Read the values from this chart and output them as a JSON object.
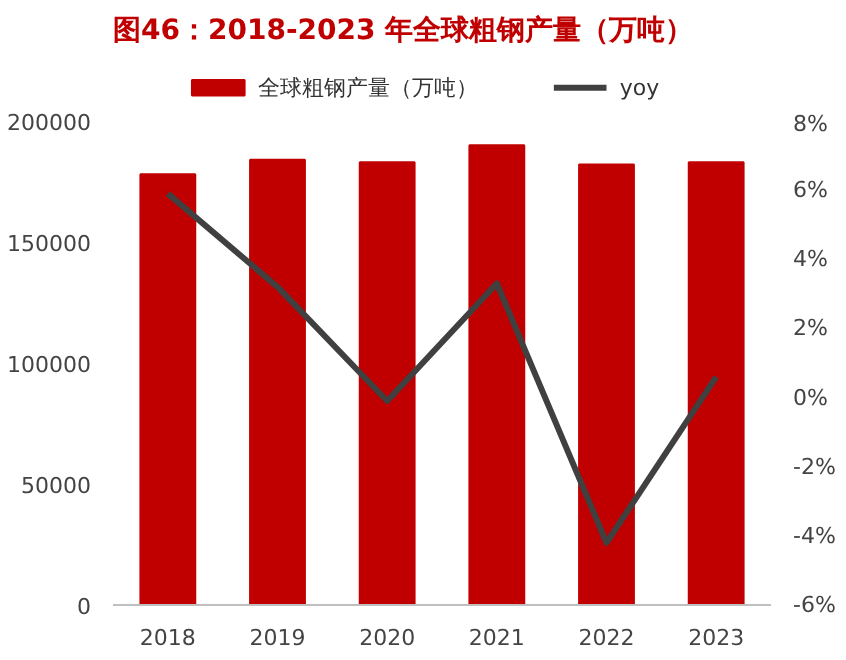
{
  "chart_data": {
    "type": "bar",
    "title": "图46：2018-2023 年全球粗钢产量（万吨）",
    "categories": [
      "2018",
      "2019",
      "2020",
      "2021",
      "2022",
      "2023"
    ],
    "series": [
      {
        "name": "全球粗钢产量（万吨）",
        "color": "#c00000",
        "values": [
          178000,
          184000,
          183000,
          190000,
          182000,
          183000
        ]
      },
      {
        "name": "yoy",
        "type": "line",
        "axis": "y2",
        "color": "#404040",
        "values": [
          5.9,
          3.2,
          -0.1,
          3.3,
          -4.2,
          0.6
        ]
      }
    ],
    "ylim": [
      0,
      200000
    ],
    "yticks": [
      0,
      50000,
      100000,
      150000,
      200000
    ],
    "y2lim": [
      -6,
      8
    ],
    "y2ticks": [
      {
        "value": -6,
        "label": "-6%"
      },
      {
        "value": -4,
        "label": "-4%"
      },
      {
        "value": -2,
        "label": "-2%"
      },
      {
        "value": 0,
        "label": "0%"
      },
      {
        "value": 2,
        "label": "2%"
      },
      {
        "value": 4,
        "label": "4%"
      },
      {
        "value": 6,
        "label": "6%"
      },
      {
        "value": 8,
        "label": "8%"
      }
    ],
    "grid": false,
    "legend": "top"
  }
}
